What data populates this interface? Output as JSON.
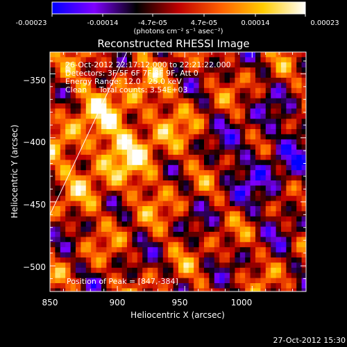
{
  "colorbar": {
    "tick_labels": [
      "-0.00023",
      "-0.00014",
      "-4.7e-05",
      "4.7e-05",
      "0.00014",
      "0.00023"
    ],
    "unit_label": "(photons cm⁻² s⁻¹ asec⁻²)"
  },
  "annotations": {
    "time_range": "26-Oct-2012 22:17:12.000 to 22:21:22.000",
    "detectors": "Detectors: 3F 5F 6F 7F 8F 9F, Att 0",
    "energy_range": "Energy Range: 12.0 - 25.0 keV",
    "clean_counts": "Clean     Total counts: 3.54E+03",
    "peak_position": "Position of Peak = [847,-384]"
  },
  "footer": {
    "timestamp": "27-Oct-2012 15:30"
  },
  "chart_data": {
    "type": "heatmap",
    "title": "Reconstructed RHESSI Image",
    "xlabel": "Heliocentric X (arcsec)",
    "ylabel": "Heliocentric Y (arcsec)",
    "xlim": [
      850,
      1040
    ],
    "ylim": [
      -520,
      -333
    ],
    "x_ticks": [
      850,
      900,
      950,
      1000
    ],
    "y_ticks": [
      -350,
      -400,
      -450,
      -500
    ],
    "colorbar_range": [
      -0.00023,
      0.00023
    ],
    "colormap": "blue-purple-black-red-yellow-white",
    "colormap_stops": [
      "#0000ff",
      "#7f00ff",
      "#000000",
      "#bf0000",
      "#ff6000",
      "#ffcc00",
      "#ffffff"
    ],
    "peak": [
      847,
      -384
    ],
    "limb_line": {
      "x": [
        850,
        907
      ],
      "y": [
        -460,
        -333
      ]
    }
  }
}
